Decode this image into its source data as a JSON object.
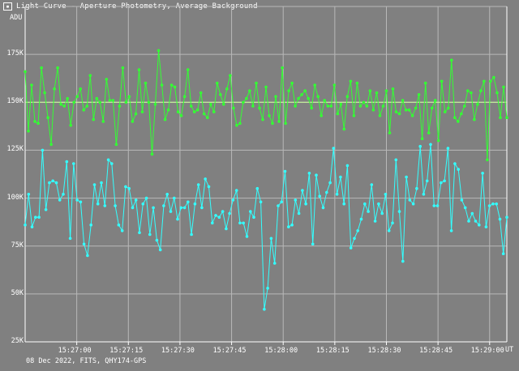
{
  "window": {
    "title": "Light Curve - Aperture Photometry, Average Background",
    "icon": "app-icon"
  },
  "plot": {
    "y_unit": "ADU",
    "x_unit": "UT",
    "footer": "08 Dec 2022, FITS, QHY174-GPS",
    "colors": {
      "background": "#808080",
      "grid": "#b8b8b8",
      "axis": "#ffffff",
      "series_green": "#33ff33",
      "series_cyan": "#33ffff",
      "reference_line": "#ccff99"
    }
  },
  "chart_data": {
    "type": "line",
    "title": "Light Curve - Aperture Photometry, Average Background",
    "xlabel": "UT",
    "ylabel": "ADU",
    "ylim": [
      25000,
      200000
    ],
    "xlim": [
      "15:26:45",
      "15:29:05"
    ],
    "y_ticks": [
      "25K",
      "50K",
      "75K",
      "100K",
      "125K",
      "150K",
      "175K"
    ],
    "x_ticks": [
      "15:27:00",
      "15:27:15",
      "15:27:30",
      "15:27:45",
      "15:28:00",
      "15:28:15",
      "15:28:30",
      "15:28:45",
      "15:29:00"
    ],
    "grid": true,
    "reference_line": 150000,
    "series": [
      {
        "color": "#33ff33",
        "values": [
          166000,
          135000,
          159000,
          140000,
          139000,
          168000,
          155000,
          142000,
          128000,
          157000,
          168000,
          149000,
          148000,
          152000,
          138000,
          150000,
          153000,
          157000,
          146000,
          148000,
          164000,
          141000,
          152000,
          150000,
          140000,
          162000,
          151000,
          151000,
          128000,
          148000,
          168000,
          150000,
          153000,
          140000,
          144000,
          167000,
          145000,
          160000,
          150000,
          123000,
          149000,
          177000,
          159000,
          141000,
          146000,
          159000,
          158000,
          145000,
          143000,
          153000,
          167000,
          148000,
          145000,
          146000,
          155000,
          144000,
          142000,
          149000,
          145000,
          160000,
          154000,
          149000,
          157000,
          164000,
          147000,
          138000,
          139000,
          150000,
          152000,
          156000,
          148000,
          160000,
          147000,
          141000,
          158000,
          143000,
          139000,
          153000,
          140000,
          168000,
          139000,
          156000,
          160000,
          148000,
          152000,
          154000,
          156000,
          152000,
          147000,
          159000,
          153000,
          143000,
          151000,
          148000,
          148000,
          159000,
          144000,
          149000,
          136000,
          153000,
          161000,
          143000,
          160000,
          148000,
          150000,
          148000,
          156000,
          146000,
          155000,
          143000,
          148000,
          156000,
          134000,
          157000,
          145000,
          144000,
          151000,
          146000,
          146000,
          143000,
          147000,
          154000,
          131000,
          160000,
          134000,
          147000,
          151000,
          130000,
          161000,
          145000,
          147000,
          172000,
          142000,
          140000,
          144000,
          148000,
          156000,
          155000,
          141000,
          149000,
          156000,
          161000,
          120000,
          161000,
          163000,
          155000,
          142000,
          158000,
          142000
        ],
        "x_start": "15:26:45",
        "x_end": "15:29:05"
      },
      {
        "color": "#33ffff",
        "values": [
          86000,
          102000,
          85000,
          90000,
          90000,
          125000,
          94000,
          108000,
          109000,
          108000,
          99000,
          102000,
          119000,
          79000,
          118000,
          99000,
          98000,
          76000,
          70000,
          86000,
          107000,
          97000,
          108000,
          96000,
          120000,
          118000,
          96000,
          86000,
          83000,
          106000,
          105000,
          95000,
          99000,
          82000,
          97000,
          100000,
          81000,
          95000,
          78000,
          73000,
          96000,
          102000,
          93000,
          100000,
          89000,
          95000,
          95000,
          98000,
          81000,
          97000,
          107000,
          95000,
          110000,
          106000,
          87000,
          91000,
          90000,
          93000,
          84000,
          92000,
          99000,
          104000,
          87000,
          87000,
          80000,
          93000,
          90000,
          105000,
          98000,
          42000,
          53000,
          79000,
          66000,
          96000,
          98000,
          114000,
          85000,
          86000,
          99000,
          92000,
          104000,
          97000,
          113000,
          76000,
          112000,
          101000,
          95000,
          103000,
          108000,
          126000,
          102000,
          111000,
          97000,
          117000,
          74000,
          79000,
          83000,
          89000,
          97000,
          93000,
          107000,
          88000,
          97000,
          92000,
          102000,
          83000,
          87000,
          120000,
          93000,
          67000,
          111000,
          99000,
          97000,
          105000,
          127000,
          102000,
          109000,
          128000,
          96000,
          96000,
          108000,
          109000,
          126000,
          83000,
          118000,
          115000,
          99000,
          95000,
          88000,
          92000,
          88000,
          86000,
          113000,
          85000,
          96000,
          97000,
          97000,
          89000,
          71000,
          90000
        ],
        "x_start": "15:26:45",
        "x_end": "15:29:05"
      }
    ]
  }
}
